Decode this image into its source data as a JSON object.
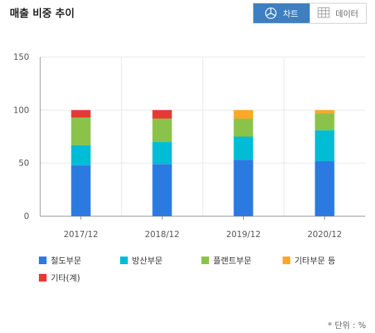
{
  "header": {
    "title": "매출 비중 추이"
  },
  "view_toggle": {
    "chart_label": "차트",
    "chart_icon": "pie-chart-icon",
    "data_label": "데이터",
    "data_icon": "table-grid-icon",
    "active_color": "#3d7fc1"
  },
  "unit_note": "* 단위 : %",
  "chart_data": {
    "type": "bar",
    "stacked": true,
    "categories": [
      "2017/12",
      "2018/12",
      "2019/12",
      "2020/12"
    ],
    "ylim": [
      0,
      150
    ],
    "yticks": [
      0,
      50,
      100,
      150
    ],
    "grid": true,
    "legend_position": "bottom",
    "series": [
      {
        "name": "철도부문",
        "color": "#2a7ae2",
        "values": [
          48,
          49,
          53,
          52
        ]
      },
      {
        "name": "방산부문",
        "color": "#00bcd4",
        "values": [
          19,
          21,
          22,
          29
        ]
      },
      {
        "name": "플랜트부문",
        "color": "#8bc34a",
        "values": [
          26,
          22,
          17,
          16
        ]
      },
      {
        "name": "기타부문 등",
        "color": "#ffa726",
        "values": [
          0,
          0,
          8,
          3
        ]
      },
      {
        "name": "기타(계)",
        "color": "#e53935",
        "values": [
          7,
          8,
          0,
          0
        ]
      }
    ]
  }
}
